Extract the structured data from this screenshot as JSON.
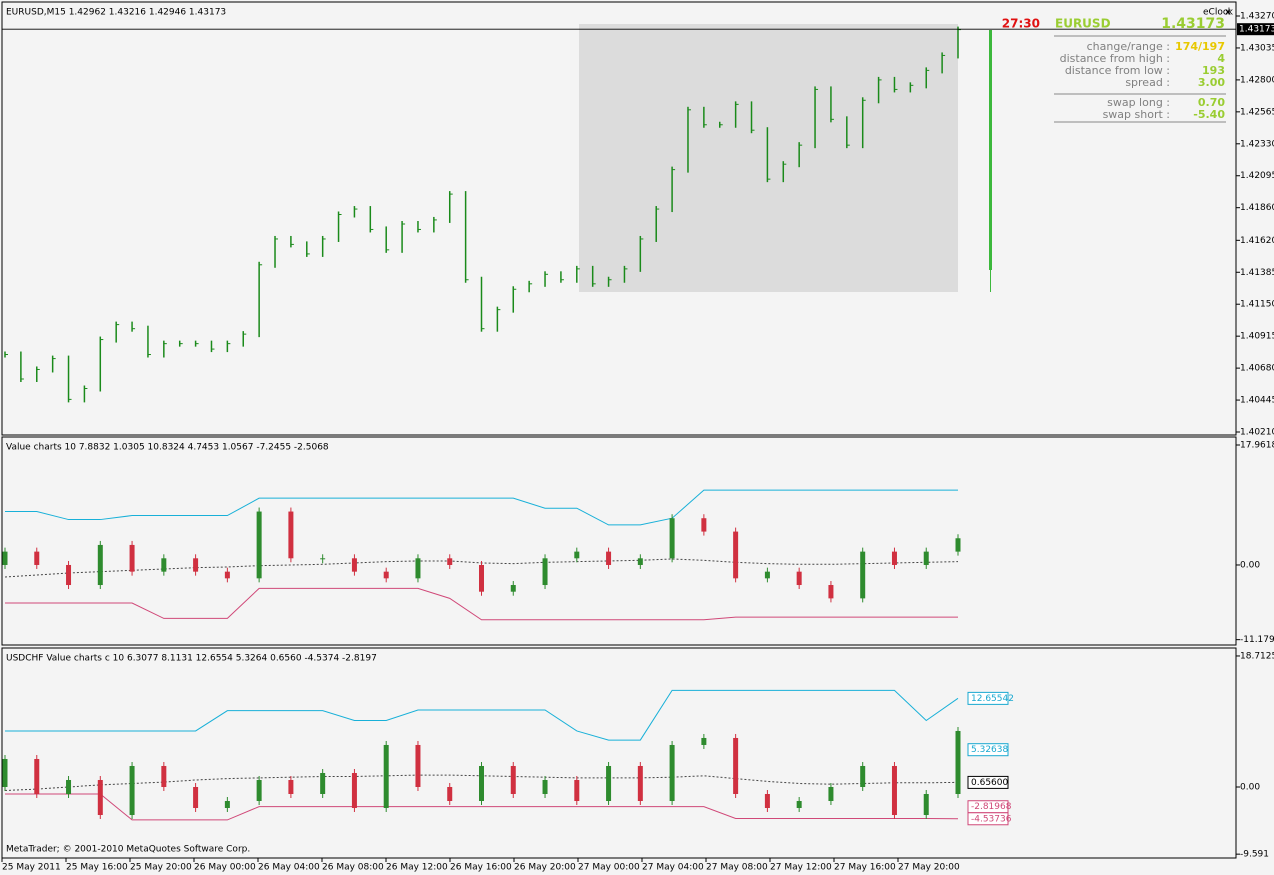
{
  "charts": [
    {
      "type": "bars",
      "title": "EURUSD,M15  1.42962 1.43216 1.42946 1.43173",
      "color": "#1a8a1a",
      "values": [
        1.4078,
        1.406,
        1.4067,
        1.4075,
        1.4045,
        1.4053,
        1.4089,
        1.41,
        1.4097,
        1.4078,
        1.4086,
        1.4086,
        1.4086,
        1.4082,
        1.4086,
        1.4093,
        1.4144,
        1.4163,
        1.4159,
        1.4152,
        1.4163,
        1.4181,
        1.4185,
        1.417,
        1.4155,
        1.4174,
        1.417,
        1.4177,
        1.4196,
        1.4133,
        1.4097,
        1.4111,
        1.4126,
        1.413,
        1.4137,
        1.4133,
        1.4141,
        1.413,
        1.4133,
        1.4141,
        1.4163,
        1.4185,
        1.4214,
        1.4258,
        1.4247,
        1.4247,
        1.4262,
        1.4243,
        1.4207,
        1.4218,
        1.4232,
        1.4273,
        1.4251,
        1.4232,
        1.4265,
        1.428,
        1.4273,
        1.4276,
        1.4287,
        1.4298,
        1.4317
      ],
      "ylim": [
        1.40188,
        1.43373
      ],
      "yticks": [
        {
          "value": 1.4327,
          "label": "1.43270"
        },
        {
          "value": 1.43035,
          "label": "1.43035"
        },
        {
          "value": 1.428,
          "label": "1.42800"
        },
        {
          "value": 1.42565,
          "label": "1.42565"
        },
        {
          "value": 1.4233,
          "label": "1.42330"
        },
        {
          "value": 1.42095,
          "label": "1.42095"
        },
        {
          "value": 1.4186,
          "label": "1.41860"
        },
        {
          "value": 1.4162,
          "label": "1.41620"
        },
        {
          "value": 1.41385,
          "label": "1.41385"
        },
        {
          "value": 1.4115,
          "label": "1.41150"
        },
        {
          "value": 1.40915,
          "label": "1.40915"
        },
        {
          "value": 1.4068,
          "label": "1.40680"
        },
        {
          "value": 1.40445,
          "label": "1.40445"
        },
        {
          "value": 1.4021,
          "label": "1.40210"
        }
      ],
      "current_price": {
        "value": 1.43173,
        "label": "1.43173"
      }
    },
    {
      "type": "candles",
      "title": "Value charts 10 7.8832 1.0305 10.8324 4.7453 1.0567 -7.2455 -2.5068",
      "values": [
        2,
        0,
        -3,
        3,
        -1,
        1,
        -1,
        -2,
        8,
        1,
        1,
        -1,
        -2,
        1,
        0,
        -4,
        -3,
        1,
        2,
        0,
        1,
        7,
        5,
        -2,
        -1,
        -3,
        -5,
        2,
        0,
        2,
        4
      ],
      "upper": [
        8,
        8,
        6.8,
        6.8,
        7.4,
        7.4,
        7.4,
        7.4,
        10,
        10,
        10,
        10,
        10,
        10,
        10,
        10,
        10,
        8.5,
        8.5,
        6,
        6,
        7,
        11.2,
        11.2,
        11.2,
        11.2,
        11.2,
        11.2,
        11.2,
        11.2,
        11.2
      ],
      "lower": [
        -5.7,
        -5.7,
        -5.7,
        -5.7,
        -5.7,
        -8,
        -8,
        -8,
        -3.5,
        -3.5,
        -3.5,
        -3.5,
        -3.5,
        -3.5,
        -5,
        -8.2,
        -8.2,
        -8.2,
        -8.2,
        -8.2,
        -8.2,
        -8.2,
        -8.2,
        -7.8,
        -7.8,
        -7.8,
        -7.8,
        -7.8,
        -7.8,
        -7.8,
        -7.8
      ],
      "middle": [
        -1.8,
        -1.5,
        -1.2,
        -1,
        -0.8,
        -0.6,
        -0.4,
        -0.3,
        -0.1,
        0,
        0.1,
        0.3,
        0.5,
        0.6,
        0.6,
        0.3,
        0.2,
        0.4,
        0.5,
        0.6,
        0.7,
        0.9,
        0.7,
        0.4,
        0.2,
        0.1,
        0.1,
        0.2,
        0.3,
        0.4,
        0.5
      ],
      "ylim": [
        -11.98,
        19.16
      ],
      "yticks": [
        17.9618,
        {
          "value": 0,
          "label": "0.00"
        },
        -11.1794
      ]
    },
    {
      "type": "candles",
      "title": "USDCHF Value charts c 10 6.3077 8.1131 12.6554 5.3264 0.6560 -4.5374 -2.8197",
      "values": [
        4,
        -1,
        1,
        -4,
        3,
        0,
        -3,
        -2,
        1,
        -1,
        2,
        -3,
        6,
        0,
        -2,
        3,
        -1,
        1,
        -2,
        3,
        -2,
        6,
        7,
        -1,
        -3,
        -2,
        0,
        3,
        -4,
        -1,
        8
      ],
      "upper": [
        8,
        8,
        8,
        8,
        8,
        8,
        8,
        10.9,
        10.9,
        10.9,
        10.9,
        9.5,
        9.5,
        11,
        11,
        11,
        11,
        11,
        8,
        6.7,
        6.7,
        13.8,
        13.8,
        13.8,
        13.8,
        13.8,
        13.8,
        13.8,
        13.8,
        9.5,
        12.66
      ],
      "lower": [
        -1,
        -1,
        -1,
        -1,
        -4.7,
        -4.7,
        -4.7,
        -4.7,
        -2.8,
        -2.8,
        -2.8,
        -2.8,
        -2.8,
        -2.8,
        -2.8,
        -2.8,
        -2.8,
        -2.8,
        -2.8,
        -2.8,
        -2.8,
        -2.8,
        -2.8,
        -4.5,
        -4.5,
        -4.5,
        -4.5,
        -4.5,
        -4.5,
        -4.5,
        -4.54
      ],
      "middle": [
        -0.5,
        -0.3,
        0,
        0.3,
        0.5,
        0.7,
        1,
        1.2,
        1.3,
        1.4,
        1.5,
        1.5,
        1.6,
        1.7,
        1.7,
        1.6,
        1.5,
        1.4,
        1.3,
        1.3,
        1.3,
        1.4,
        1.6,
        1.2,
        0.8,
        0.5,
        0.4,
        0.5,
        0.6,
        0.6,
        0.66
      ],
      "ylim": [
        -10.14,
        19.85
      ],
      "yticks": [
        18.7125,
        {
          "value": 0,
          "label": "0.00"
        },
        -9.591
      ],
      "levels": [
        12.65542,
        5.32638,
        {
          "value": 0.656,
          "label": "0.65600"
        },
        -2.81968,
        -4.53736
      ],
      "level_colors": [
        "#18a8d0",
        "#18a8d0",
        "#000000",
        "#d04878",
        "#d04878"
      ]
    }
  ],
  "time_axis": [
    "25 May 2011",
    "25 May 16:00",
    "25 May 20:00",
    "26 May 00:00",
    "26 May 04:00",
    "26 May 08:00",
    "26 May 12:00",
    "26 May 16:00",
    "26 May 20:00",
    "27 May 00:00",
    "27 May 04:00",
    "27 May 08:00",
    "27 May 12:00",
    "27 May 16:00",
    "27 May 20:00"
  ],
  "footer": "MetaTrader; © 2001-2010 MetaQuotes Software Corp.",
  "eclock": {
    "title": "eClock",
    "close": "x",
    "countdown": "27:30",
    "symbol": "EURUSD",
    "price": "1.43173",
    "rows": [
      {
        "label": "change/range :",
        "value": "174/197"
      },
      {
        "label": "distance from high :",
        "value": "4"
      },
      {
        "label": "distance from low :",
        "value": "193"
      },
      {
        "label": "spread :",
        "value": "3.00"
      }
    ],
    "swap_rows": [
      {
        "label": "swap long :",
        "value": "0.70"
      },
      {
        "label": "swap short :",
        "value": "-5.40"
      }
    ]
  }
}
